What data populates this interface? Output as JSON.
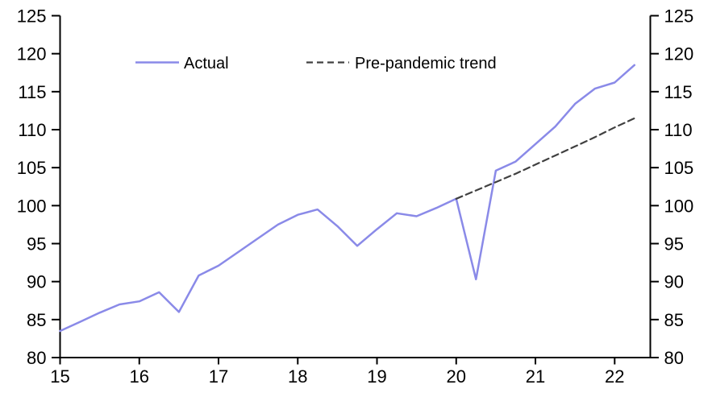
{
  "chart_data": {
    "type": "line",
    "title": "",
    "xlabel": "",
    "ylabel": "",
    "xlim": [
      15,
      22.45
    ],
    "ylim": [
      80,
      125
    ],
    "grid": false,
    "background": "#ffffff",
    "axis_color": "#000000",
    "legend_position": "top-inside",
    "x_ticks": [
      15,
      16,
      17,
      18,
      19,
      20,
      21,
      22
    ],
    "x_tick_labels": [
      "15",
      "16",
      "17",
      "18",
      "19",
      "20",
      "21",
      "22"
    ],
    "y_ticks": [
      80,
      85,
      90,
      95,
      100,
      105,
      110,
      115,
      120,
      125
    ],
    "y_tick_labels": [
      "80",
      "85",
      "90",
      "95",
      "100",
      "105",
      "110",
      "115",
      "120",
      "125"
    ],
    "y_axis_sides": [
      "left",
      "right"
    ],
    "series": [
      {
        "name": "Actual",
        "style": "solid",
        "color": "#8a8ae8",
        "x": [
          15.0,
          15.25,
          15.5,
          15.75,
          16.0,
          16.25,
          16.5,
          16.75,
          17.0,
          17.25,
          17.5,
          17.75,
          18.0,
          18.25,
          18.5,
          18.75,
          19.0,
          19.25,
          19.5,
          19.75,
          20.0,
          20.25,
          20.5,
          20.75,
          21.0,
          21.25,
          21.5,
          21.75,
          22.0,
          22.25
        ],
        "values": [
          83.5,
          84.7,
          85.9,
          87.0,
          87.4,
          88.6,
          86.0,
          90.8,
          92.1,
          93.9,
          95.7,
          97.5,
          98.8,
          99.5,
          97.3,
          94.7,
          96.9,
          99.0,
          98.6,
          99.7,
          100.9,
          90.3,
          104.6,
          105.8,
          108.1,
          110.4,
          113.4,
          115.4,
          116.2,
          118.5
        ]
      },
      {
        "name": "Pre-pandemic trend",
        "style": "dashed",
        "color": "#404040",
        "x": [
          20.0,
          20.25,
          20.5,
          20.75,
          21.0,
          21.25,
          21.5,
          21.75,
          22.0,
          22.25
        ],
        "values": [
          100.9,
          102.0,
          103.1,
          104.2,
          105.4,
          106.6,
          107.8,
          109.0,
          110.3,
          111.5
        ]
      }
    ]
  }
}
